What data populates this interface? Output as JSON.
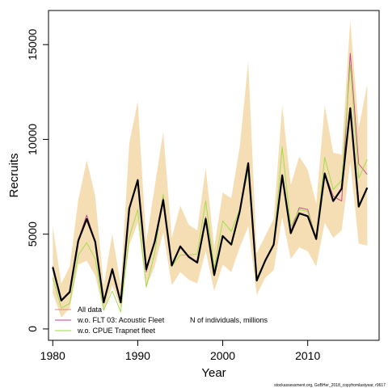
{
  "chart_data": {
    "type": "line",
    "xlabel": "Year",
    "ylabel": "Recruits",
    "xlim": [
      1979.5,
      2018.4
    ],
    "ylim": [
      -600,
      16800
    ],
    "x_ticks": [
      1980,
      1990,
      2000,
      2010
    ],
    "y_ticks": [
      0,
      5000,
      10000,
      15000
    ],
    "x_tick_labels": [
      "1980",
      "1990",
      "2000",
      "2010"
    ],
    "y_tick_labels": [
      "0",
      "5000",
      "10000",
      "15000"
    ],
    "grid": false,
    "legend_position": "bottom-left",
    "legend_note": "N of individuals, millions",
    "footnote": "stockassessment.org, GoBHer_2018_copyfromlastyear, r9617",
    "x": [
      1980,
      1981,
      1982,
      1983,
      1984,
      1985,
      1986,
      1987,
      1988,
      1989,
      1990,
      1991,
      1992,
      1993,
      1994,
      1995,
      1996,
      1997,
      1998,
      1999,
      2000,
      2001,
      2002,
      2003,
      2004,
      2005,
      2006,
      2007,
      2008,
      2009,
      2010,
      2011,
      2012,
      2013,
      2014,
      2015,
      2016,
      2017
    ],
    "band": {
      "lower": [
        1900,
        600,
        1100,
        3400,
        3600,
        2800,
        900,
        2300,
        1100,
        4400,
        5600,
        2200,
        3300,
        5100,
        2300,
        3000,
        2600,
        2400,
        4100,
        2000,
        3400,
        3000,
        4300,
        5400,
        1800,
        2700,
        3100,
        5900,
        3700,
        4300,
        4100,
        3300,
        5600,
        4800,
        5200,
        8800,
        4500,
        4400
      ],
      "upper": [
        5400,
        2400,
        3300,
        6800,
        8900,
        7000,
        2300,
        5000,
        2300,
        9800,
        12000,
        4600,
        7500,
        10400,
        4800,
        6500,
        5500,
        5200,
        8500,
        4300,
        7200,
        6900,
        9600,
        14100,
        4000,
        4900,
        5800,
        11800,
        7600,
        9100,
        8400,
        6600,
        11800,
        9300,
        9200,
        16300,
        10600,
        12900
      ]
    },
    "series": [
      {
        "name": "All data",
        "color": "#f08080",
        "values": [
          3250,
          1500,
          1950,
          4650,
          5800,
          4600,
          1400,
          3150,
          1400,
          6350,
          7850,
          3150,
          4600,
          6800,
          3350,
          4350,
          3800,
          3500,
          5800,
          2850,
          4900,
          4450,
          6200,
          8750,
          2550,
          3600,
          4450,
          8100,
          5050,
          6100,
          5950,
          4750,
          8200,
          6750,
          7400,
          11650,
          6450,
          7450
        ]
      },
      {
        "name": "w.o. FLT 03: Acoustic Fleet",
        "color": "#c04090",
        "values": [
          3300,
          1500,
          1900,
          4700,
          6000,
          4600,
          1450,
          3200,
          1450,
          6400,
          7900,
          3000,
          4700,
          6900,
          3300,
          4400,
          3850,
          3550,
          5900,
          2800,
          4900,
          4500,
          6300,
          8750,
          2550,
          3650,
          4500,
          8150,
          5150,
          6400,
          6300,
          4700,
          8250,
          7000,
          6750,
          14550,
          8700,
          8150
        ]
      },
      {
        "name": "w.o. CPUE Trapnet fleet",
        "color": "#99dd44",
        "values": [
          2700,
          1100,
          1350,
          3900,
          4550,
          3700,
          1000,
          2000,
          900,
          4850,
          6300,
          2200,
          4000,
          7100,
          3300,
          3900,
          3900,
          3950,
          6750,
          3200,
          5700,
          5150,
          6300,
          8350,
          2700,
          3600,
          4450,
          9600,
          5400,
          6300,
          6200,
          4750,
          9050,
          7350,
          7850,
          13950,
          7950,
          8950
        ]
      },
      {
        "name": "",
        "color": "#000000",
        "values": [
          3250,
          1500,
          1950,
          4650,
          5800,
          4600,
          1400,
          3150,
          1400,
          6350,
          7850,
          3150,
          4600,
          6800,
          3350,
          4350,
          3800,
          3500,
          5800,
          2850,
          4900,
          4450,
          6200,
          8750,
          2550,
          3600,
          4450,
          8100,
          5050,
          6100,
          5950,
          4750,
          8200,
          6750,
          7400,
          11650,
          6450,
          7450
        ]
      }
    ]
  }
}
